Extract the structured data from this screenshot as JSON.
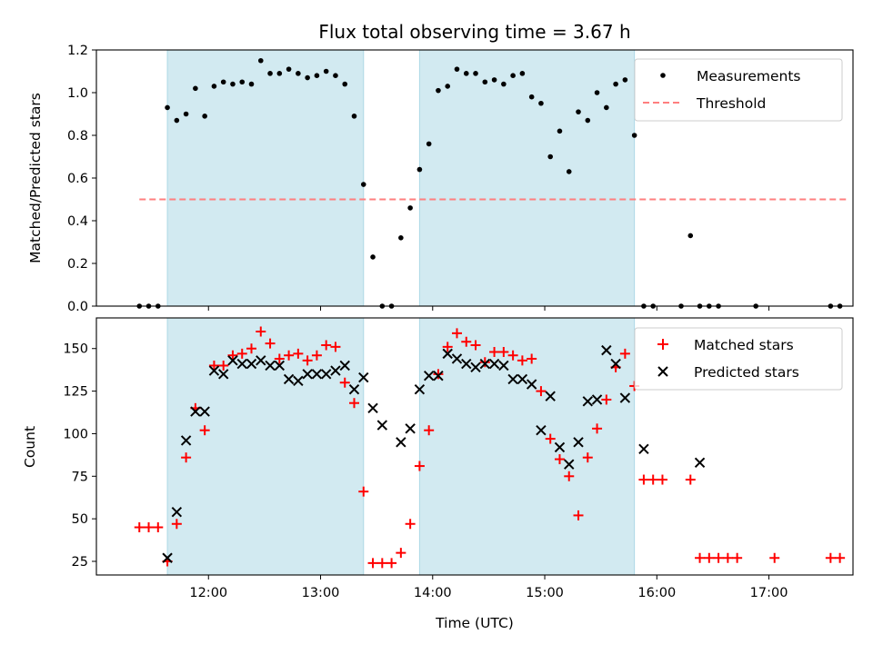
{
  "chart_data": [
    {
      "type": "scatter",
      "title": "Flux total observing time = 3.67 h",
      "xlabel": "",
      "ylabel": "Matched/Predicted stars",
      "ylim": [
        0,
        1.2
      ],
      "yticks": [
        "0.0",
        "0.2",
        "0.4",
        "0.6",
        "0.8",
        "1.0",
        "1.2"
      ],
      "xlim_hours": [
        11.0,
        17.75
      ],
      "legend_position": "top-right",
      "colors": {
        "measurements": "#000000",
        "threshold": "#ff7f7f",
        "band": "#add8e6"
      },
      "observing_windows": [
        [
          "11:38",
          "13:23"
        ],
        [
          "13:53",
          "15:48"
        ]
      ],
      "threshold": {
        "name": "Threshold",
        "value": 0.5,
        "x_range": [
          "11:23",
          "17:43"
        ]
      },
      "series": [
        {
          "name": "Measurements",
          "style": "dot",
          "points": [
            [
              "11:23",
              0.0
            ],
            [
              "11:28",
              0.0
            ],
            [
              "11:33",
              0.0
            ],
            [
              "11:38",
              0.93
            ],
            [
              "11:43",
              0.87
            ],
            [
              "11:48",
              0.9
            ],
            [
              "11:53",
              1.02
            ],
            [
              "11:58",
              0.89
            ],
            [
              "12:03",
              1.03
            ],
            [
              "12:08",
              1.05
            ],
            [
              "12:13",
              1.04
            ],
            [
              "12:18",
              1.05
            ],
            [
              "12:23",
              1.04
            ],
            [
              "12:28",
              1.15
            ],
            [
              "12:33",
              1.09
            ],
            [
              "12:38",
              1.09
            ],
            [
              "12:43",
              1.11
            ],
            [
              "12:48",
              1.09
            ],
            [
              "12:53",
              1.07
            ],
            [
              "12:58",
              1.08
            ],
            [
              "13:03",
              1.1
            ],
            [
              "13:08",
              1.08
            ],
            [
              "13:13",
              1.04
            ],
            [
              "13:18",
              0.89
            ],
            [
              "13:23",
              0.57
            ],
            [
              "13:28",
              0.23
            ],
            [
              "13:33",
              0.0
            ],
            [
              "13:38",
              0.0
            ],
            [
              "13:43",
              0.32
            ],
            [
              "13:48",
              0.46
            ],
            [
              "13:53",
              0.64
            ],
            [
              "13:58",
              0.76
            ],
            [
              "14:03",
              1.01
            ],
            [
              "14:08",
              1.03
            ],
            [
              "14:13",
              1.11
            ],
            [
              "14:18",
              1.09
            ],
            [
              "14:23",
              1.09
            ],
            [
              "14:28",
              1.05
            ],
            [
              "14:33",
              1.06
            ],
            [
              "14:38",
              1.04
            ],
            [
              "14:43",
              1.08
            ],
            [
              "14:48",
              1.09
            ],
            [
              "14:53",
              0.98
            ],
            [
              "14:58",
              0.95
            ],
            [
              "15:03",
              0.7
            ],
            [
              "15:08",
              0.82
            ],
            [
              "15:13",
              0.63
            ],
            [
              "15:18",
              0.91
            ],
            [
              "15:23",
              0.87
            ],
            [
              "15:28",
              1.0
            ],
            [
              "15:33",
              0.93
            ],
            [
              "15:38",
              1.04
            ],
            [
              "15:43",
              1.06
            ],
            [
              "15:48",
              0.8
            ],
            [
              "15:53",
              0.0
            ],
            [
              "15:58",
              0.0
            ],
            [
              "16:13",
              0.0
            ],
            [
              "16:18",
              0.33
            ],
            [
              "16:23",
              0.0
            ],
            [
              "16:28",
              0.0
            ],
            [
              "16:33",
              0.0
            ],
            [
              "16:53",
              0.0
            ],
            [
              "17:33",
              0.0
            ],
            [
              "17:38",
              0.0
            ]
          ]
        }
      ]
    },
    {
      "type": "scatter",
      "title": "",
      "xlabel": "Time (UTC)",
      "ylabel": "Count",
      "ylim": [
        17,
        168
      ],
      "yticks": [
        "25",
        "50",
        "75",
        "100",
        "125",
        "150"
      ],
      "xticks": [
        "12:00",
        "13:00",
        "14:00",
        "15:00",
        "16:00",
        "17:00"
      ],
      "xlim_hours": [
        11.0,
        17.75
      ],
      "legend_position": "top-right",
      "colors": {
        "matched": "#ff0000",
        "predicted": "#000000",
        "band": "#add8e6"
      },
      "observing_windows": [
        [
          "11:38",
          "13:23"
        ],
        [
          "13:53",
          "15:48"
        ]
      ],
      "series": [
        {
          "name": "Matched stars",
          "style": "plus",
          "points": [
            [
              "11:23",
              45
            ],
            [
              "11:28",
              45
            ],
            [
              "11:33",
              45
            ],
            [
              "11:38",
              25
            ],
            [
              "11:43",
              47
            ],
            [
              "11:48",
              86
            ],
            [
              "11:53",
              115
            ],
            [
              "11:58",
              102
            ],
            [
              "12:03",
              140
            ],
            [
              "12:08",
              140
            ],
            [
              "12:13",
              146
            ],
            [
              "12:18",
              147
            ],
            [
              "12:23",
              150
            ],
            [
              "12:28",
              160
            ],
            [
              "12:33",
              153
            ],
            [
              "12:38",
              144
            ],
            [
              "12:43",
              146
            ],
            [
              "12:48",
              147
            ],
            [
              "12:53",
              143
            ],
            [
              "12:58",
              146
            ],
            [
              "13:03",
              152
            ],
            [
              "13:08",
              151
            ],
            [
              "13:13",
              130
            ],
            [
              "13:18",
              118
            ],
            [
              "13:23",
              66
            ],
            [
              "13:28",
              24
            ],
            [
              "13:33",
              24
            ],
            [
              "13:38",
              24
            ],
            [
              "13:43",
              30
            ],
            [
              "13:48",
              47
            ],
            [
              "13:53",
              81
            ],
            [
              "13:58",
              102
            ],
            [
              "14:03",
              135
            ],
            [
              "14:08",
              151
            ],
            [
              "14:13",
              159
            ],
            [
              "14:18",
              154
            ],
            [
              "14:23",
              152
            ],
            [
              "14:28",
              142
            ],
            [
              "14:33",
              148
            ],
            [
              "14:38",
              148
            ],
            [
              "14:43",
              146
            ],
            [
              "14:48",
              143
            ],
            [
              "14:53",
              144
            ],
            [
              "14:58",
              125
            ],
            [
              "15:03",
              97
            ],
            [
              "15:08",
              85
            ],
            [
              "15:13",
              75
            ],
            [
              "15:18",
              52
            ],
            [
              "15:23",
              86
            ],
            [
              "15:28",
              103
            ],
            [
              "15:33",
              120
            ],
            [
              "15:38",
              139
            ],
            [
              "15:43",
              147
            ],
            [
              "15:48",
              128
            ],
            [
              "15:53",
              73
            ],
            [
              "15:58",
              73
            ],
            [
              "16:03",
              73
            ],
            [
              "16:18",
              73
            ],
            [
              "16:23",
              27
            ],
            [
              "16:28",
              27
            ],
            [
              "16:33",
              27
            ],
            [
              "16:38",
              27
            ],
            [
              "16:43",
              27
            ],
            [
              "17:03",
              27
            ],
            [
              "17:33",
              27
            ],
            [
              "17:38",
              27
            ]
          ]
        },
        {
          "name": "Predicted stars",
          "style": "x",
          "points": [
            [
              "11:38",
              27
            ],
            [
              "11:43",
              54
            ],
            [
              "11:48",
              96
            ],
            [
              "11:53",
              113
            ],
            [
              "11:58",
              113
            ],
            [
              "12:03",
              137
            ],
            [
              "12:08",
              135
            ],
            [
              "12:13",
              143
            ],
            [
              "12:18",
              141
            ],
            [
              "12:23",
              141
            ],
            [
              "12:28",
              143
            ],
            [
              "12:33",
              140
            ],
            [
              "12:38",
              140
            ],
            [
              "12:43",
              132
            ],
            [
              "12:48",
              131
            ],
            [
              "12:53",
              135
            ],
            [
              "12:58",
              135
            ],
            [
              "13:03",
              135
            ],
            [
              "13:08",
              137
            ],
            [
              "13:13",
              140
            ],
            [
              "13:18",
              126
            ],
            [
              "13:23",
              133
            ],
            [
              "13:28",
              115
            ],
            [
              "13:33",
              105
            ],
            [
              "13:43",
              95
            ],
            [
              "13:48",
              103
            ],
            [
              "13:53",
              126
            ],
            [
              "13:58",
              134
            ],
            [
              "14:03",
              134
            ],
            [
              "14:08",
              147
            ],
            [
              "14:13",
              144
            ],
            [
              "14:18",
              141
            ],
            [
              "14:23",
              139
            ],
            [
              "14:28",
              141
            ],
            [
              "14:33",
              141
            ],
            [
              "14:38",
              140
            ],
            [
              "14:43",
              132
            ],
            [
              "14:48",
              132
            ],
            [
              "14:53",
              129
            ],
            [
              "14:58",
              102
            ],
            [
              "15:03",
              122
            ],
            [
              "15:08",
              92
            ],
            [
              "15:13",
              82
            ],
            [
              "15:18",
              95
            ],
            [
              "15:23",
              119
            ],
            [
              "15:28",
              120
            ],
            [
              "15:33",
              149
            ],
            [
              "15:38",
              141
            ],
            [
              "15:43",
              121
            ],
            [
              "15:53",
              91
            ],
            [
              "16:23",
              83
            ]
          ]
        }
      ]
    }
  ]
}
